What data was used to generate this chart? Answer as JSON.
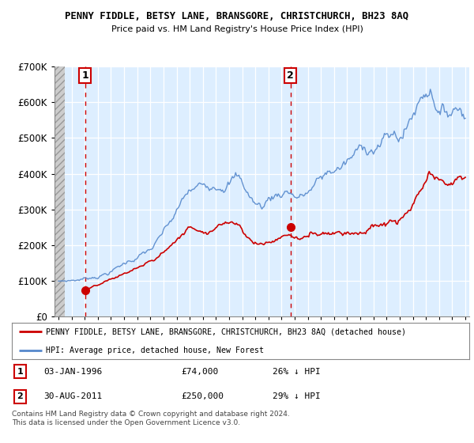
{
  "title": "PENNY FIDDLE, BETSY LANE, BRANSGORE, CHRISTCHURCH, BH23 8AQ",
  "subtitle": "Price paid vs. HM Land Registry's House Price Index (HPI)",
  "legend_line1": "PENNY FIDDLE, BETSY LANE, BRANSGORE, CHRISTCHURCH, BH23 8AQ (detached house)",
  "legend_line2": "HPI: Average price, detached house, New Forest",
  "sale1_date": "03-JAN-1996",
  "sale1_price": "£74,000",
  "sale1_hpi": "26% ↓ HPI",
  "sale2_date": "30-AUG-2011",
  "sale2_price": "£250,000",
  "sale2_hpi": "29% ↓ HPI",
  "footnote": "Contains HM Land Registry data © Crown copyright and database right 2024.\nThis data is licensed under the Open Government Licence v3.0.",
  "hpi_color": "#5588cc",
  "sale_color": "#cc0000",
  "dashed_line_color": "#cc0000",
  "bg_color": "#ddeeff",
  "ylim": [
    0,
    700000
  ],
  "yticks": [
    0,
    100000,
    200000,
    300000,
    400000,
    500000,
    600000,
    700000
  ],
  "sale1_year": 1996.04,
  "sale2_year": 2011.67,
  "sale1_price_val": 74000,
  "sale2_price_val": 250000,
  "xmin": 1993.7,
  "xmax": 2025.3
}
